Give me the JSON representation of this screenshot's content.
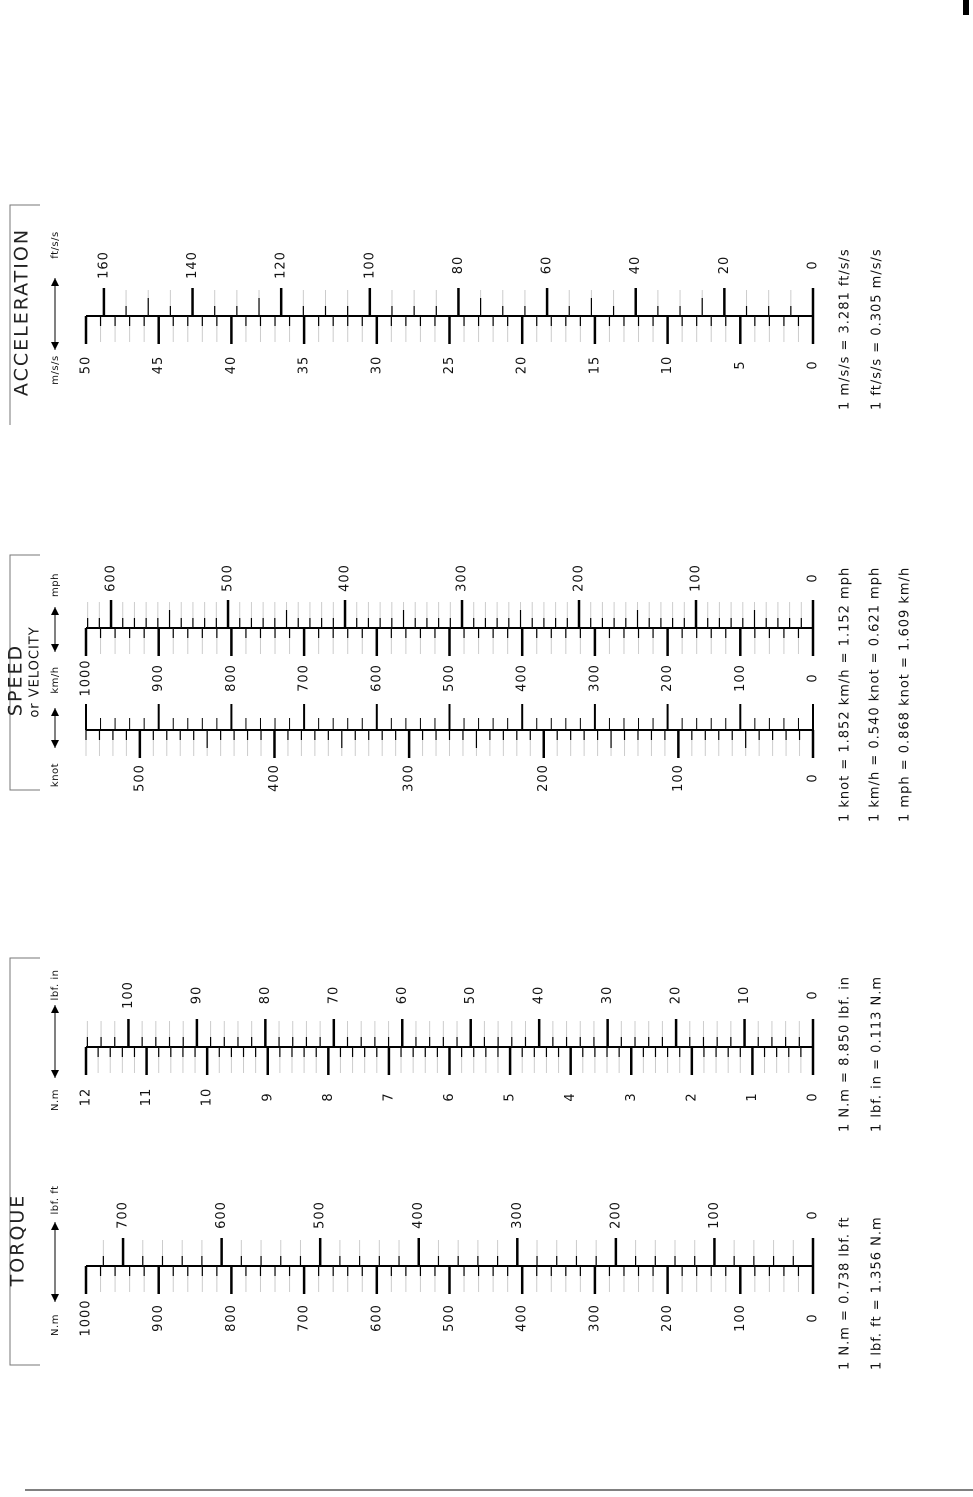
{
  "sections": [
    {
      "title": "ACCELERATION",
      "scales": [
        {
          "unit": "m/s/s",
          "labels": [
            "50",
            "45",
            "40",
            "35",
            "30",
            "25",
            "20",
            "15",
            "10",
            "5",
            "0"
          ]
        },
        {
          "unit": "ft/s/s",
          "labels": [
            "160",
            "140",
            "120",
            "100",
            "80",
            "60",
            "40",
            "20",
            "0"
          ]
        }
      ],
      "notes": [
        "1 m/s/s = 3.281 ft/s/s",
        "1 ft/s/s = 0.305 m/s/s"
      ]
    },
    {
      "title": "SPEED",
      "subtitle": "or VELOCITY",
      "scales": [
        {
          "unit": "mph",
          "labels": [
            "600",
            "500",
            "400",
            "300",
            "200",
            "100",
            "0"
          ]
        },
        {
          "unit": "km/h",
          "labels": [
            "1000",
            "900",
            "800",
            "700",
            "600",
            "500",
            "400",
            "300",
            "200",
            "100",
            "0"
          ]
        },
        {
          "unit": "knot",
          "labels": [
            "500",
            "400",
            "300",
            "200",
            "100",
            "0"
          ]
        }
      ],
      "notes": [
        "1 knot = 1.852 km/h = 1.152 mph",
        "1 km/h = 0.540 knot = 0.621 mph",
        "1 mph = 0.868 knot = 1.609 km/h"
      ]
    },
    {
      "title": "TORQUE",
      "scales": [
        {
          "unit": "lbf. in",
          "labels": [
            "100",
            "90",
            "80",
            "70",
            "60",
            "50",
            "40",
            "30",
            "20",
            "10",
            "0"
          ]
        },
        {
          "unit": "N.m",
          "labels": [
            "12",
            "11",
            "10",
            "9",
            "8",
            "7",
            "6",
            "5",
            "4",
            "3",
            "2",
            "1",
            "0"
          ]
        },
        {
          "unit": "lbf. ft",
          "labels": [
            "700",
            "600",
            "500",
            "400",
            "300",
            "200",
            "100",
            "0"
          ]
        },
        {
          "unit": "N.m",
          "labels": [
            "1000",
            "900",
            "800",
            "700",
            "600",
            "500",
            "400",
            "300",
            "200",
            "100",
            "0"
          ]
        }
      ],
      "notes": [
        "1 N.m = 0.738 lbf. ft",
        "1 lbf. ft = 1.356 N.m",
        "1 N.m = 8.850 lbf. in",
        "1 lbf. in = 0.113 N.m"
      ]
    }
  ]
}
